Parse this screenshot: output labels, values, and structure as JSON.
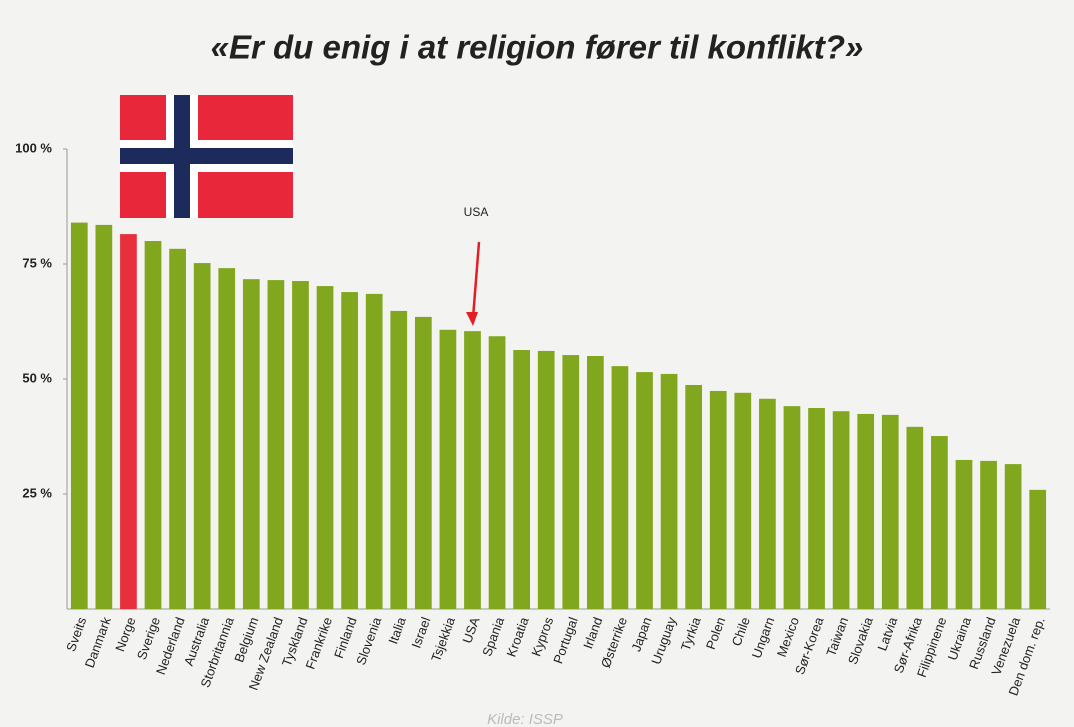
{
  "chart_data": {
    "type": "bar",
    "title": "«Er du enig i at religion fører til konflikt?»",
    "categories": [
      "Sveits",
      "Danmark",
      "Norge",
      "Sverige",
      "Nederland",
      "Australia",
      "Storbritannia",
      "Belgium",
      "New Zealand",
      "Tyskland",
      "Frankrike",
      "Finland",
      "Slovenia",
      "Italia",
      "Israel",
      "Tsjekkia",
      "USA",
      "Spania",
      "Kroatia",
      "Kypros",
      "Portugal",
      "Irland",
      "Østerrike",
      "Japan",
      "Uruguay",
      "Tyrkia",
      "Polen",
      "Chile",
      "Ungarn",
      "Mexico",
      "Sør-Korea",
      "Taiwan",
      "Slovakia",
      "Latvia",
      "Sør-Afrika",
      "Filippinene",
      "Ukraina",
      "Russland",
      "Venezuela",
      "Den dom. rep."
    ],
    "values": [
      84,
      83.5,
      81.5,
      80,
      78.3,
      75.2,
      74.1,
      71.7,
      71.5,
      71.3,
      70.2,
      68.9,
      68.5,
      64.8,
      63.5,
      60.7,
      60.4,
      59.3,
      56.3,
      56.1,
      55.2,
      55,
      52.8,
      51.5,
      51.1,
      48.7,
      47.4,
      47,
      45.7,
      44.1,
      43.7,
      43,
      42.4,
      42.2,
      39.6,
      37.6,
      32.4,
      32.2,
      31.5,
      25.9
    ],
    "colors": [
      "#80a71d",
      "#80a71d",
      "#e7303c",
      "#80a71d",
      "#80a71d",
      "#80a71d",
      "#80a71d",
      "#80a71d",
      "#80a71d",
      "#80a71d",
      "#80a71d",
      "#80a71d",
      "#80a71d",
      "#80a71d",
      "#80a71d",
      "#80a71d",
      "#80a71d",
      "#80a71d",
      "#80a71d",
      "#80a71d",
      "#80a71d",
      "#80a71d",
      "#80a71d",
      "#80a71d",
      "#80a71d",
      "#80a71d",
      "#80a71d",
      "#80a71d",
      "#80a71d",
      "#80a71d",
      "#80a71d",
      "#80a71d",
      "#80a71d",
      "#80a71d",
      "#80a71d",
      "#80a71d",
      "#80a71d",
      "#80a71d",
      "#80a71d",
      "#80a71d"
    ],
    "ylim": [
      0,
      100
    ],
    "yticks": [
      {
        "value": 25,
        "label": "25 %"
      },
      {
        "value": 50,
        "label": "50 %"
      },
      {
        "value": 75,
        "label": "75 %"
      },
      {
        "value": 100,
        "label": "100 %"
      }
    ],
    "annotation": "USA",
    "source": "Kilde: ISSP"
  }
}
